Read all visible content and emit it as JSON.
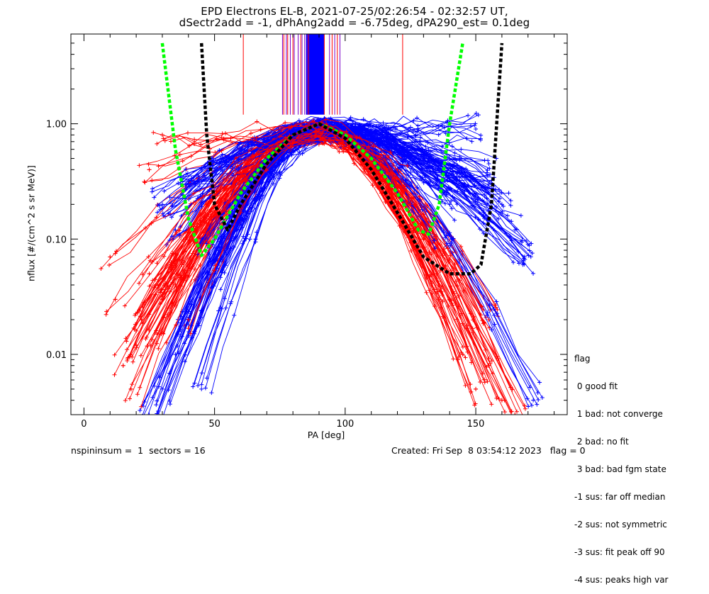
{
  "chart_data": {
    "type": "scatter",
    "title": "EPD Electrons EL-B, 2021-07-25/02:26:54 - 02:32:57 UT,",
    "subtitle": "dSectr2add = -1, dPhAng2add = -6.75deg, dPA290_est=   0.1deg",
    "xlabel": "PA [deg]",
    "ylabel": "nflux [#/(cm^2 s sr MeV)]",
    "xlim": [
      -5,
      185
    ],
    "ylim": [
      0.003,
      6
    ],
    "yscale": "log",
    "x_ticks": [
      0,
      50,
      100,
      150
    ],
    "y_ticks": [
      {
        "value": 0.01,
        "label": "0.01"
      },
      {
        "value": 0.1,
        "label": "0.10"
      },
      {
        "value": 1.0,
        "label": "1.00"
      }
    ],
    "series": [
      {
        "color": "#ff0000",
        "marker": "+",
        "style": "many curves peaking near PA 90 (~0.9), falling to ~0.003-0.1 at PA 10-30 and 130-160",
        "peak": {
          "x": 90,
          "y": 0.9
        },
        "wing_points_low": [
          [
            10,
            0.07
          ],
          [
            12,
            0.03
          ],
          [
            15,
            0.008
          ],
          [
            18,
            0.005
          ],
          [
            20,
            0.012
          ],
          [
            22,
            0.02
          ],
          [
            25,
            0.05
          ],
          [
            28,
            0.015
          ],
          [
            30,
            0.03
          ],
          [
            35,
            0.04
          ],
          [
            40,
            0.02
          ],
          [
            25,
            0.4
          ],
          [
            30,
            0.8
          ]
        ],
        "wing_points_high": [
          [
            120,
            0.4
          ],
          [
            125,
            0.2
          ],
          [
            130,
            0.1
          ],
          [
            135,
            0.05
          ],
          [
            140,
            0.03
          ],
          [
            145,
            0.01
          ],
          [
            150,
            0.005
          ],
          [
            155,
            0.008
          ],
          [
            160,
            0.004
          ],
          [
            165,
            0.003
          ],
          [
            155,
            0.02
          ]
        ]
      },
      {
        "color": "#0000ff",
        "marker": "+",
        "style": "many curves peaking near PA 90 (~0.9), wider wings reaching 0.003-0.9 at PA 130-172",
        "peak": {
          "x": 92,
          "y": 0.95
        },
        "wing_points_low": [
          [
            25,
            0.003
          ],
          [
            30,
            0.005
          ],
          [
            35,
            0.01
          ],
          [
            40,
            0.02
          ],
          [
            45,
            0.005
          ],
          [
            50,
            0.05
          ],
          [
            30,
            0.2
          ],
          [
            35,
            0.12
          ],
          [
            40,
            0.3
          ],
          [
            45,
            0.1
          ]
        ],
        "wing_points_high": [
          [
            135,
            0.1
          ],
          [
            140,
            0.2
          ],
          [
            145,
            0.35
          ],
          [
            150,
            0.25
          ],
          [
            155,
            0.45
          ],
          [
            160,
            0.2
          ],
          [
            165,
            0.12
          ],
          [
            168,
            0.06
          ],
          [
            170,
            0.09
          ],
          [
            172,
            0.004
          ],
          [
            150,
            0.9
          ],
          [
            155,
            0.3
          ]
        ]
      },
      {
        "color": "#00ff00",
        "marker": "dashed-line",
        "style": "fit curve",
        "points": [
          [
            30,
            5.0
          ],
          [
            35,
            0.6
          ],
          [
            40,
            0.15
          ],
          [
            45,
            0.072
          ],
          [
            50,
            0.1
          ],
          [
            60,
            0.25
          ],
          [
            70,
            0.5
          ],
          [
            80,
            0.8
          ],
          [
            90,
            1.0
          ],
          [
            100,
            0.8
          ],
          [
            110,
            0.5
          ],
          [
            120,
            0.25
          ],
          [
            128,
            0.12
          ],
          [
            132,
            0.11
          ],
          [
            136,
            0.2
          ],
          [
            140,
            1.0
          ],
          [
            145,
            5.0
          ]
        ]
      },
      {
        "color": "#000000",
        "marker": "dashed-line",
        "style": "fit curve",
        "points": [
          [
            45,
            5.0
          ],
          [
            47,
            0.8
          ],
          [
            50,
            0.2
          ],
          [
            55,
            0.12
          ],
          [
            60,
            0.2
          ],
          [
            70,
            0.45
          ],
          [
            80,
            0.8
          ],
          [
            90,
            1.0
          ],
          [
            100,
            0.75
          ],
          [
            110,
            0.4
          ],
          [
            120,
            0.17
          ],
          [
            130,
            0.07
          ],
          [
            140,
            0.05
          ],
          [
            148,
            0.05
          ],
          [
            152,
            0.06
          ],
          [
            156,
            0.2
          ],
          [
            160,
            5.0
          ]
        ]
      }
    ],
    "vertical_markers": {
      "red": [
        61,
        76.5,
        78,
        80,
        83,
        86,
        92,
        95,
        97,
        122
      ],
      "purple": [
        76,
        77.5,
        79,
        80.5,
        82,
        83.5,
        84.5,
        85.5,
        94,
        96,
        98
      ],
      "blue_band": [
        85,
        92
      ],
      "top_y": 6,
      "bottom_y": 1.2
    },
    "legend": {
      "placement": "right",
      "title": "flag",
      "entries": [
        " 0 good fit",
        " 1 bad: not converge",
        " 2 bad: no fit",
        " 3 bad: bad fgm state",
        "-1 sus: far off median",
        "-2 sus: not symmetric",
        "-3 sus: fit peak off 90",
        "-4 sus: peaks high var"
      ]
    },
    "footer": {
      "left": "nspininsum =  1  sectors = 16",
      "right": "Created: Fri Sep  8 03:54:12 2023   flag = 0"
    }
  }
}
